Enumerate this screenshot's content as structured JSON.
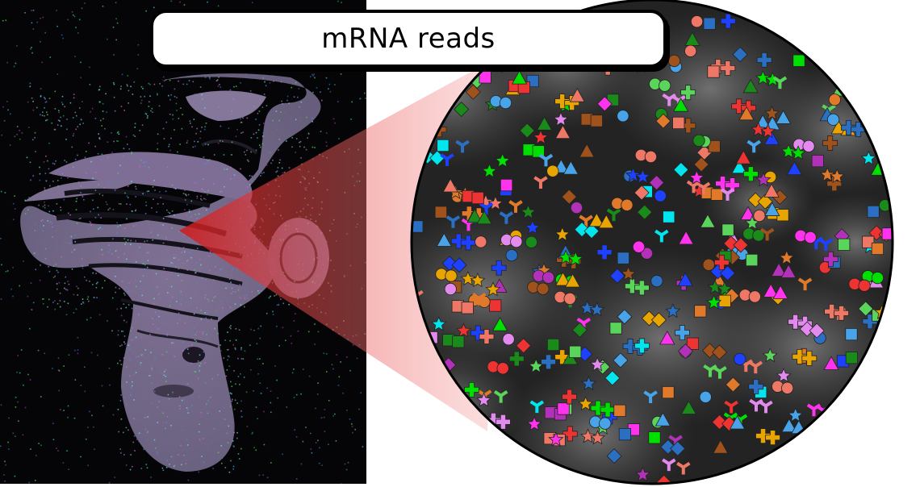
{
  "title": {
    "text": "mRNA reads"
  },
  "colors": {
    "background": "#ffffff",
    "tissue_panel_bg": "#050507",
    "callout_fill": "#e84444",
    "zoom_bg": "#232323",
    "marker_palette": [
      "#00e000",
      "#2a6fc1",
      "#00e5ee",
      "#ff33ee",
      "#b132b8",
      "#e38aee",
      "#ee3333",
      "#1a8a1a",
      "#e8a400",
      "#a0521c",
      "#1e40ff",
      "#5bd45b",
      "#ee7766",
      "#48a3e8",
      "#e07a2a"
    ]
  },
  "icons": {
    "markers": [
      "circle",
      "star",
      "plus",
      "triangle",
      "diamond",
      "square",
      "tri-branch"
    ]
  }
}
